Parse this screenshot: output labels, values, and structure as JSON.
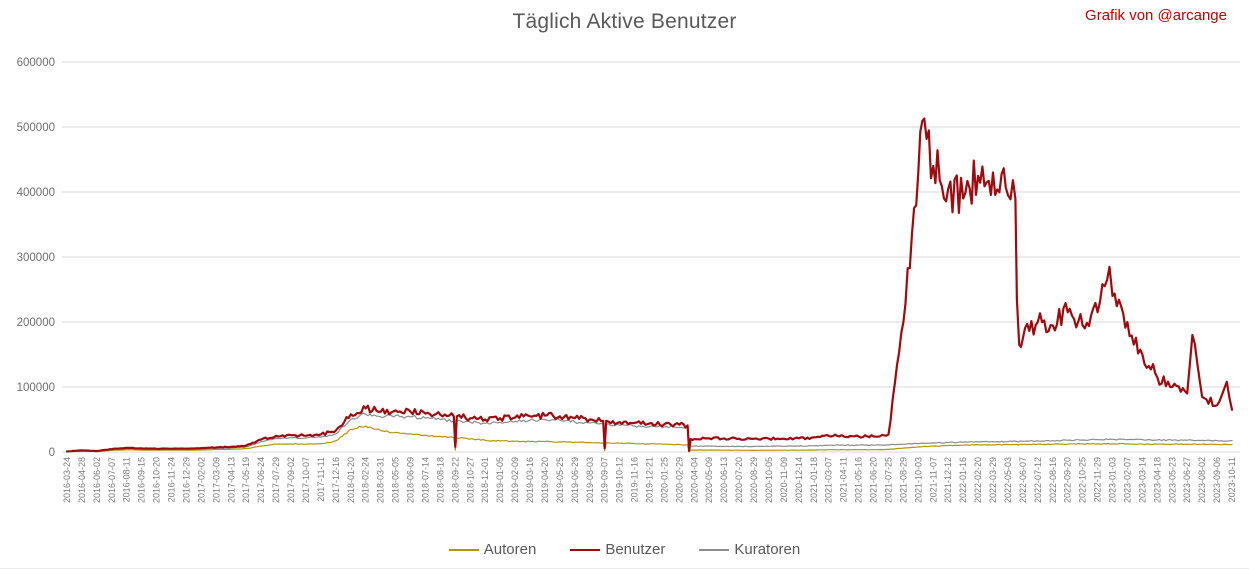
{
  "colors": {
    "background": "#FFFFFF",
    "title_text": "#595959",
    "attribution_text": "#C00000",
    "gridline": "#D9D9D9",
    "y_tick_label": "#6E6E6E",
    "x_tick_label": "#7A7A7A",
    "legend_text": "#595959"
  },
  "chart_data": {
    "type": "line",
    "title": "Täglich Aktive Benutzer",
    "attribution": "Grafik von @arcange",
    "xlabel": "",
    "ylabel": "",
    "ylim": [
      0,
      600000
    ],
    "y_ticks": [
      0,
      100000,
      200000,
      300000,
      400000,
      500000,
      600000
    ],
    "grid": "horizontal",
    "legend_position": "bottom",
    "x_ticks": [
      "2016-03-24",
      "2016-04-28",
      "2016-06-02",
      "2016-07-07",
      "2016-08-11",
      "2016-09-15",
      "2016-10-20",
      "2016-11-24",
      "2016-12-29",
      "2017-02-02",
      "2017-03-09",
      "2017-04-13",
      "2017-05-19",
      "2017-06-24",
      "2017-07-29",
      "2017-09-02",
      "2017-10-07",
      "2017-11-11",
      "2017-12-16",
      "2018-01-20",
      "2018-02-24",
      "2018-03-31",
      "2018-05-05",
      "2018-06-09",
      "2018-07-14",
      "2018-08-18",
      "2018-09-22",
      "2018-10-27",
      "2018-12-01",
      "2019-01-05",
      "2019-02-09",
      "2019-03-16",
      "2019-04-20",
      "2019-05-25",
      "2019-06-29",
      "2019-08-03",
      "2019-09-07",
      "2019-10-12",
      "2019-11-16",
      "2019-12-21",
      "2020-01-25",
      "2020-02-29",
      "2020-04-04",
      "2020-05-09",
      "2020-06-13",
      "2020-07-20",
      "2020-08-29",
      "2020-10-05",
      "2020-11-09",
      "2020-12-14",
      "2021-01-18",
      "2021-03-07",
      "2021-04-11",
      "2021-05-16",
      "2021-06-20",
      "2021-07-25",
      "2021-08-29",
      "2021-10-03",
      "2021-11-07",
      "2021-12-12",
      "2022-01-16",
      "2022-02-20",
      "2022-03-29",
      "2022-05-03",
      "2022-06-07",
      "2022-07-12",
      "2022-08-16",
      "2022-09-20",
      "2022-10-25",
      "2022-11-29",
      "2023-01-03",
      "2023-02-07",
      "2023-03-14",
      "2023-04-18",
      "2023-05-23",
      "2023-06-27",
      "2023-08-02",
      "2023-09-06",
      "2023-10-11"
    ],
    "series": [
      {
        "name": "Autoren",
        "color": "#B29600",
        "width": 1.2,
        "jitter": 0.05,
        "values": [
          400,
          1200,
          800,
          2500,
          3500,
          3000,
          2800,
          2800,
          2900,
          3200,
          3800,
          4200,
          5200,
          9000,
          12000,
          12500,
          12000,
          13000,
          17000,
          35000,
          40000,
          33000,
          30000,
          28000,
          26000,
          24000,
          22000,
          20000,
          18000,
          17000,
          16500,
          16000,
          16000,
          15500,
          15000,
          14500,
          14000,
          13500,
          13000,
          12500,
          12000,
          11500,
          3000,
          3000,
          2800,
          2600,
          2600,
          2700,
          2700,
          2800,
          3000,
          3500,
          3500,
          3500,
          3500,
          4000,
          6000,
          8000,
          9000,
          10000,
          10500,
          11000,
          11000,
          11500,
          11500,
          12000,
          12000,
          12000,
          12500,
          12500,
          12500,
          12500,
          12000,
          12000,
          12000,
          12000,
          12000,
          11500,
          11500
        ],
        "anomalies": [
          [
            26.9,
            22000
          ],
          [
            27.0,
            3000
          ],
          [
            27.1,
            22000
          ],
          [
            36.9,
            14000
          ],
          [
            37.0,
            2000
          ],
          [
            37.1,
            14000
          ],
          [
            42.55,
            11000
          ],
          [
            42.65,
            500
          ],
          [
            42.75,
            3000
          ]
        ]
      },
      {
        "name": "Benutzer",
        "color": "#9E0B0F",
        "width": 2.2,
        "jitter": 0.085,
        "values": [
          800,
          2500,
          1500,
          4500,
          6500,
          5500,
          5000,
          5000,
          5200,
          6000,
          7000,
          8000,
          10000,
          19000,
          25000,
          26000,
          25000,
          27000,
          33000,
          58000,
          67000,
          62000,
          64000,
          62000,
          59000,
          57000,
          55000,
          52000,
          50000,
          52000,
          53000,
          55000,
          56000,
          55000,
          52000,
          50000,
          48000,
          46000,
          45000,
          44000,
          43000,
          42000,
          20000,
          21000,
          21000,
          20500,
          20500,
          20500,
          20500,
          21000,
          22500,
          25000,
          24000,
          24000,
          24000,
          27000,
          200000,
          430000,
          440000,
          405000,
          390000,
          425000,
          430000,
          395000,
          175000,
          200000,
          195000,
          215000,
          195000,
          215000,
          240000,
          200000,
          150000,
          115000,
          100000,
          90000,
          85000,
          72000,
          65000
        ],
        "anomalies": [
          [
            26.9,
            55000
          ],
          [
            27.0,
            8000
          ],
          [
            27.1,
            55000
          ],
          [
            36.9,
            48000
          ],
          [
            37.0,
            6000
          ],
          [
            37.1,
            48000
          ],
          [
            42.55,
            41000
          ],
          [
            42.65,
            1500
          ],
          [
            42.75,
            20000
          ],
          [
            58.4,
            513000
          ],
          [
            64.5,
            390000
          ],
          [
            64.6,
            235000
          ],
          [
            64.75,
            165000
          ],
          [
            70.8,
            285000
          ],
          [
            76.35,
            180000
          ],
          [
            78.65,
            108000
          ]
        ]
      },
      {
        "name": "Kuratoren",
        "color": "#8C8C8C",
        "width": 1.2,
        "jitter": 0.05,
        "values": [
          600,
          2000,
          1200,
          3500,
          5000,
          4200,
          3800,
          3800,
          4000,
          4600,
          5400,
          6200,
          7800,
          16000,
          21000,
          22000,
          21500,
          23000,
          28000,
          50000,
          58000,
          54000,
          56000,
          54000,
          52000,
          50000,
          48000,
          46000,
          44000,
          46000,
          47000,
          49000,
          50000,
          49000,
          46000,
          44500,
          43000,
          41000,
          40000,
          39000,
          38500,
          38000,
          9000,
          9000,
          8800,
          8600,
          8600,
          8800,
          8800,
          9000,
          9500,
          10500,
          10500,
          10500,
          10500,
          11000,
          12000,
          13000,
          14000,
          14500,
          15000,
          15500,
          16000,
          16000,
          16500,
          17000,
          17500,
          18000,
          18500,
          19000,
          19500,
          19000,
          19000,
          18500,
          18000,
          18000,
          18000,
          17500,
          17500
        ],
        "anomalies": [
          [
            26.9,
            48000
          ],
          [
            27.0,
            5000
          ],
          [
            27.1,
            48000
          ],
          [
            36.9,
            43000
          ],
          [
            37.0,
            4000
          ],
          [
            37.1,
            43000
          ],
          [
            42.55,
            37500
          ],
          [
            42.65,
            800
          ],
          [
            42.75,
            9000
          ]
        ]
      }
    ]
  }
}
